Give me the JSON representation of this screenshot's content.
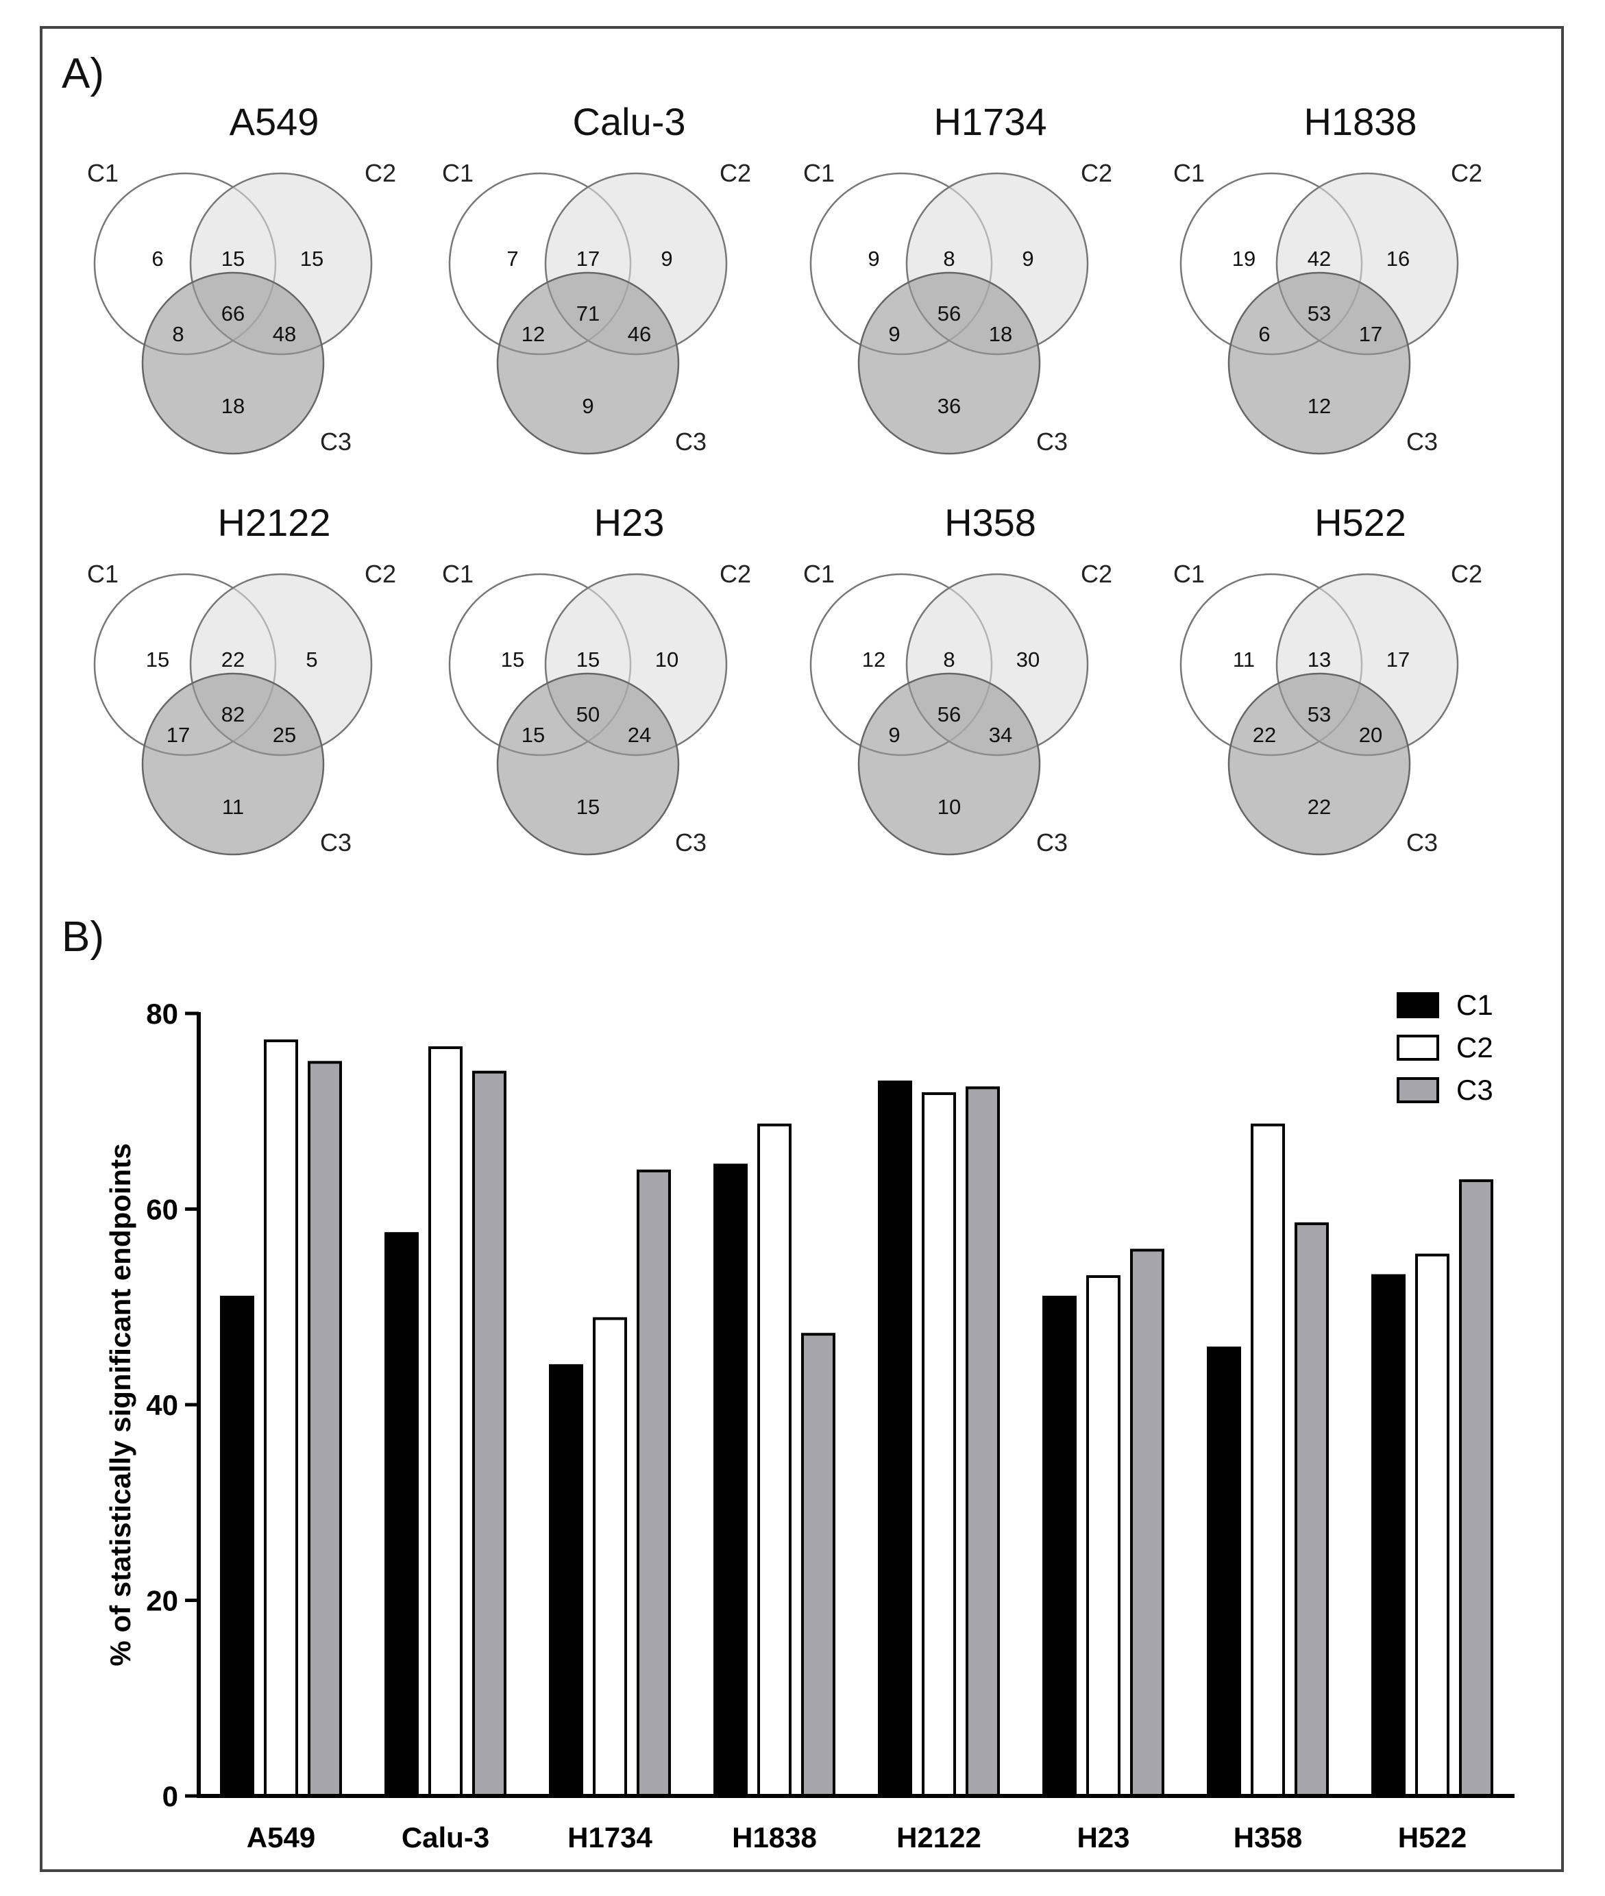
{
  "panel_a_label": "A)",
  "panel_b_label": "B)",
  "colors": {
    "c1": "#000000",
    "c2": "#ffffff",
    "c3": "#a5a5ab",
    "venn_c1": "#ffffff",
    "venn_c2": "#dedede",
    "venn_c3": "#9a9a9a",
    "frame": "#444444"
  },
  "venn": {
    "set_labels": [
      "C1",
      "C2",
      "C3"
    ],
    "panels": [
      {
        "title": "A549",
        "c1_only": 6,
        "c2_only": 15,
        "c3_only": 18,
        "c1_c2": 15,
        "c1_c3": 8,
        "c2_c3": 48,
        "all": 66
      },
      {
        "title": "Calu-3",
        "c1_only": 7,
        "c2_only": 9,
        "c3_only": 9,
        "c1_c2": 17,
        "c1_c3": 12,
        "c2_c3": 46,
        "all": 71
      },
      {
        "title": "H1734",
        "c1_only": 9,
        "c2_only": 9,
        "c3_only": 36,
        "c1_c2": 8,
        "c1_c3": 9,
        "c2_c3": 18,
        "all": 56
      },
      {
        "title": "H1838",
        "c1_only": 19,
        "c2_only": 16,
        "c3_only": 12,
        "c1_c2": 42,
        "c1_c3": 6,
        "c2_c3": 17,
        "all": 53
      },
      {
        "title": "H2122",
        "c1_only": 15,
        "c2_only": 5,
        "c3_only": 11,
        "c1_c2": 22,
        "c1_c3": 17,
        "c2_c3": 25,
        "all": 82
      },
      {
        "title": "H23",
        "c1_only": 15,
        "c2_only": 10,
        "c3_only": 15,
        "c1_c2": 15,
        "c1_c3": 15,
        "c2_c3": 24,
        "all": 50
      },
      {
        "title": "H358",
        "c1_only": 12,
        "c2_only": 30,
        "c3_only": 10,
        "c1_c2": 8,
        "c1_c3": 9,
        "c2_c3": 34,
        "all": 56
      },
      {
        "title": "H522",
        "c1_only": 11,
        "c2_only": 17,
        "c3_only": 22,
        "c1_c2": 13,
        "c1_c3": 22,
        "c2_c3": 20,
        "all": 53
      }
    ]
  },
  "chart_data": {
    "type": "bar",
    "title": "",
    "xlabel": "",
    "ylabel": "% of statistically significant endpoints",
    "ylim": [
      0,
      80
    ],
    "yticks": [
      0,
      20,
      40,
      60,
      80
    ],
    "categories": [
      "A549",
      "Calu-3",
      "H1734",
      "H1838",
      "H2122",
      "H23",
      "H358",
      "H522"
    ],
    "series": [
      {
        "name": "C1",
        "values": [
          51,
          57.5,
          44,
          64.5,
          73,
          51,
          45.8,
          53.2
        ]
      },
      {
        "name": "C2",
        "values": [
          77.2,
          76.5,
          48.8,
          68.6,
          71.8,
          53.1,
          68.6,
          55.3
        ]
      },
      {
        "name": "C3",
        "values": [
          75,
          74,
          63.9,
          47.2,
          72.4,
          55.8,
          58.5,
          62.9
        ]
      }
    ],
    "legend": "top-right",
    "grid": false
  }
}
